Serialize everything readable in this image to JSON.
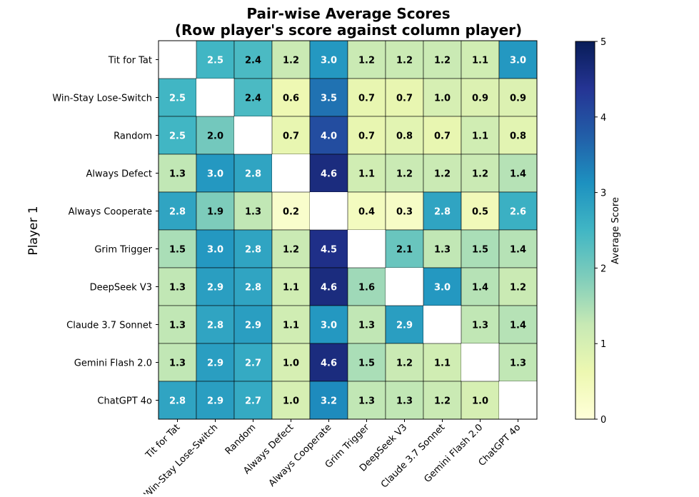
{
  "chart_data": {
    "type": "heatmap",
    "title": "Pair-wise Average Scores",
    "subtitle": "(Row player's score against column player)",
    "ylabel": "Player 1",
    "xlabel": "",
    "colorbar_label": "Average Score",
    "colorbar_range": [
      0,
      5
    ],
    "colorbar_ticks": [
      "0",
      "1",
      "2",
      "3",
      "4",
      "5"
    ],
    "colormap": "YlGnBu",
    "rows": [
      "Tit for Tat",
      "Win-Stay Lose-Switch",
      "Random",
      "Always Defect",
      "Always Cooperate",
      "Grim Trigger",
      "DeepSeek V3",
      "Claude 3.7 Sonnet",
      "Gemini Flash 2.0",
      "ChatGPT 4o"
    ],
    "columns": [
      "Tit for Tat",
      "Win-Stay Lose-Switch",
      "Random",
      "Always Defect",
      "Always Cooperate",
      "Grim Trigger",
      "DeepSeek V3",
      "Claude 3.7 Sonnet",
      "Gemini Flash 2.0",
      "ChatGPT 4o"
    ],
    "values": [
      [
        null,
        2.5,
        2.4,
        1.2,
        3.0,
        1.2,
        1.2,
        1.2,
        1.1,
        3.0
      ],
      [
        2.5,
        null,
        2.4,
        0.6,
        3.5,
        0.7,
        0.7,
        1.0,
        0.9,
        0.9
      ],
      [
        2.5,
        2.0,
        null,
        0.7,
        4.0,
        0.7,
        0.8,
        0.7,
        1.1,
        0.8
      ],
      [
        1.3,
        3.0,
        2.8,
        null,
        4.6,
        1.1,
        1.2,
        1.2,
        1.2,
        1.4
      ],
      [
        2.8,
        1.9,
        1.3,
        0.2,
        null,
        0.4,
        0.3,
        2.8,
        0.5,
        2.6
      ],
      [
        1.5,
        3.0,
        2.8,
        1.2,
        4.5,
        null,
        2.1,
        1.3,
        1.5,
        1.4
      ],
      [
        1.3,
        2.9,
        2.8,
        1.1,
        4.6,
        1.6,
        null,
        3.0,
        1.4,
        1.2
      ],
      [
        1.3,
        2.8,
        2.9,
        1.1,
        3.0,
        1.3,
        2.9,
        null,
        1.3,
        1.4
      ],
      [
        1.3,
        2.9,
        2.7,
        1.0,
        4.6,
        1.5,
        1.2,
        1.1,
        null,
        1.3
      ],
      [
        2.8,
        2.9,
        2.7,
        1.0,
        3.2,
        1.3,
        1.3,
        1.2,
        1.0,
        null
      ]
    ],
    "value_labels": [
      [
        "",
        "2.5",
        "2.4",
        "1.2",
        "3.0",
        "1.2",
        "1.2",
        "1.2",
        "1.1",
        "3.0"
      ],
      [
        "2.5",
        "",
        "2.4",
        "0.6",
        "3.5",
        "0.7",
        "0.7",
        "1.0",
        "0.9",
        "0.9"
      ],
      [
        "2.5",
        "2.0",
        "",
        "0.7",
        "4.0",
        "0.7",
        "0.8",
        "0.7",
        "1.1",
        "0.8"
      ],
      [
        "1.3",
        "3.0",
        "2.8",
        "",
        "4.6",
        "1.1",
        "1.2",
        "1.2",
        "1.2",
        "1.4"
      ],
      [
        "2.8",
        "1.9",
        "1.3",
        "0.2",
        "",
        "0.4",
        "0.3",
        "2.8",
        "0.5",
        "2.6"
      ],
      [
        "1.5",
        "3.0",
        "2.8",
        "1.2",
        "4.5",
        "",
        "2.1",
        "1.3",
        "1.5",
        "1.4"
      ],
      [
        "1.3",
        "2.9",
        "2.8",
        "1.1",
        "4.6",
        "1.6",
        "",
        "3.0",
        "1.4",
        "1.2"
      ],
      [
        "1.3",
        "2.8",
        "2.9",
        "1.1",
        "3.0",
        "1.3",
        "2.9",
        "",
        "1.3",
        "1.4"
      ],
      [
        "1.3",
        "2.9",
        "2.7",
        "1.0",
        "4.6",
        "1.5",
        "1.2",
        "1.1",
        "",
        "1.3"
      ],
      [
        "2.8",
        "2.9",
        "2.7",
        "1.0",
        "3.2",
        "1.3",
        "1.3",
        "1.2",
        "1.0",
        ""
      ]
    ]
  }
}
